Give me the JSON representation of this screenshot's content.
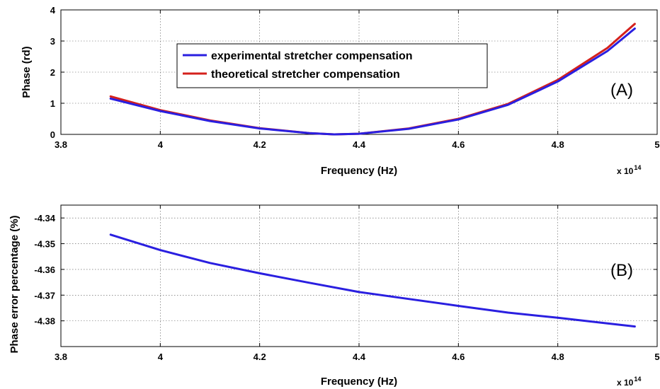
{
  "chart_data": [
    {
      "type": "line",
      "panel_label": "(A)",
      "xlabel": "Frequency (Hz)",
      "ylabel": "Phase (rd)",
      "x_multiplier_label": "x 10",
      "x_multiplier_exponent": "14",
      "xlim": [
        3.8,
        5.0
      ],
      "ylim": [
        0,
        4
      ],
      "xticks": [
        "3.8",
        "4",
        "4.2",
        "4.4",
        "4.6",
        "4.8",
        "5"
      ],
      "yticks": [
        "0",
        "1",
        "2",
        "3",
        "4"
      ],
      "grid": true,
      "legend_position": "top-center",
      "series": [
        {
          "name": "experimental stretcher compensation",
          "color": "#2a1fe0",
          "x": [
            3.9,
            4.0,
            4.1,
            4.2,
            4.3,
            4.35,
            4.4,
            4.5,
            4.6,
            4.7,
            4.8,
            4.9,
            4.955
          ],
          "y": [
            1.15,
            0.75,
            0.43,
            0.19,
            0.04,
            0.0,
            0.02,
            0.18,
            0.48,
            0.95,
            1.7,
            2.68,
            3.4
          ]
        },
        {
          "name": "theoretical stretcher compensation",
          "color": "#d4201c",
          "x": [
            3.9,
            4.0,
            4.1,
            4.2,
            4.3,
            4.35,
            4.4,
            4.5,
            4.6,
            4.7,
            4.8,
            4.9,
            4.955
          ],
          "y": [
            1.22,
            0.78,
            0.45,
            0.2,
            0.04,
            0.0,
            0.02,
            0.19,
            0.5,
            0.98,
            1.75,
            2.78,
            3.55
          ]
        }
      ]
    },
    {
      "type": "line",
      "panel_label": "(B)",
      "xlabel": "Frequency (Hz)",
      "ylabel": "Phase error percentage (%)",
      "x_multiplier_label": "x 10",
      "x_multiplier_exponent": "14",
      "xlim": [
        3.8,
        5.0
      ],
      "ylim": [
        -4.39,
        -4.335
      ],
      "xticks": [
        "3.8",
        "4",
        "4.2",
        "4.4",
        "4.6",
        "4.8",
        "5"
      ],
      "yticks": [
        "-4.34",
        "-4.35",
        "-4.36",
        "-4.37",
        "-4.38"
      ],
      "grid": true,
      "series": [
        {
          "color": "#2a1fe0",
          "x": [
            3.9,
            4.0,
            4.1,
            4.2,
            4.3,
            4.4,
            4.5,
            4.6,
            4.7,
            4.8,
            4.9,
            4.955
          ],
          "y": [
            -4.3465,
            -4.3525,
            -4.3575,
            -4.3615,
            -4.3652,
            -4.3688,
            -4.3715,
            -4.3742,
            -4.3768,
            -4.3788,
            -4.381,
            -4.3822
          ]
        }
      ]
    }
  ]
}
